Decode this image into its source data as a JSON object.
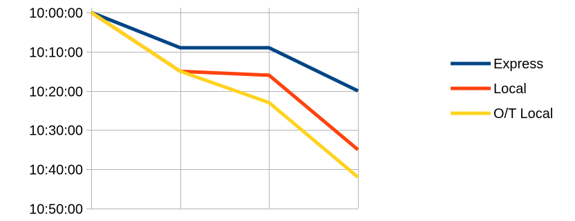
{
  "chart_data": {
    "type": "line",
    "x": [
      1,
      2,
      3,
      4
    ],
    "y_axis": {
      "inverted": true,
      "min": "10:00:00",
      "max": "10:50:00",
      "ticks": [
        "10:00:00",
        "10:10:00",
        "10:20:00",
        "10:30:00",
        "10:40:00",
        "10:50:00"
      ]
    },
    "grid": true,
    "legend": "right",
    "series": [
      {
        "name": "Express",
        "color": "#004586",
        "values": [
          "10:00:00",
          "10:09:00",
          "10:09:00",
          "10:20:00"
        ]
      },
      {
        "name": "Local",
        "color": "#ff420e",
        "values": [
          "10:00:00",
          "10:15:00",
          "10:16:00",
          "10:35:00"
        ]
      },
      {
        "name": "O/T Local",
        "color": "#ffd320",
        "values": [
          "10:00:00",
          "10:15:00",
          "10:23:00",
          "10:42:00"
        ]
      }
    ]
  }
}
